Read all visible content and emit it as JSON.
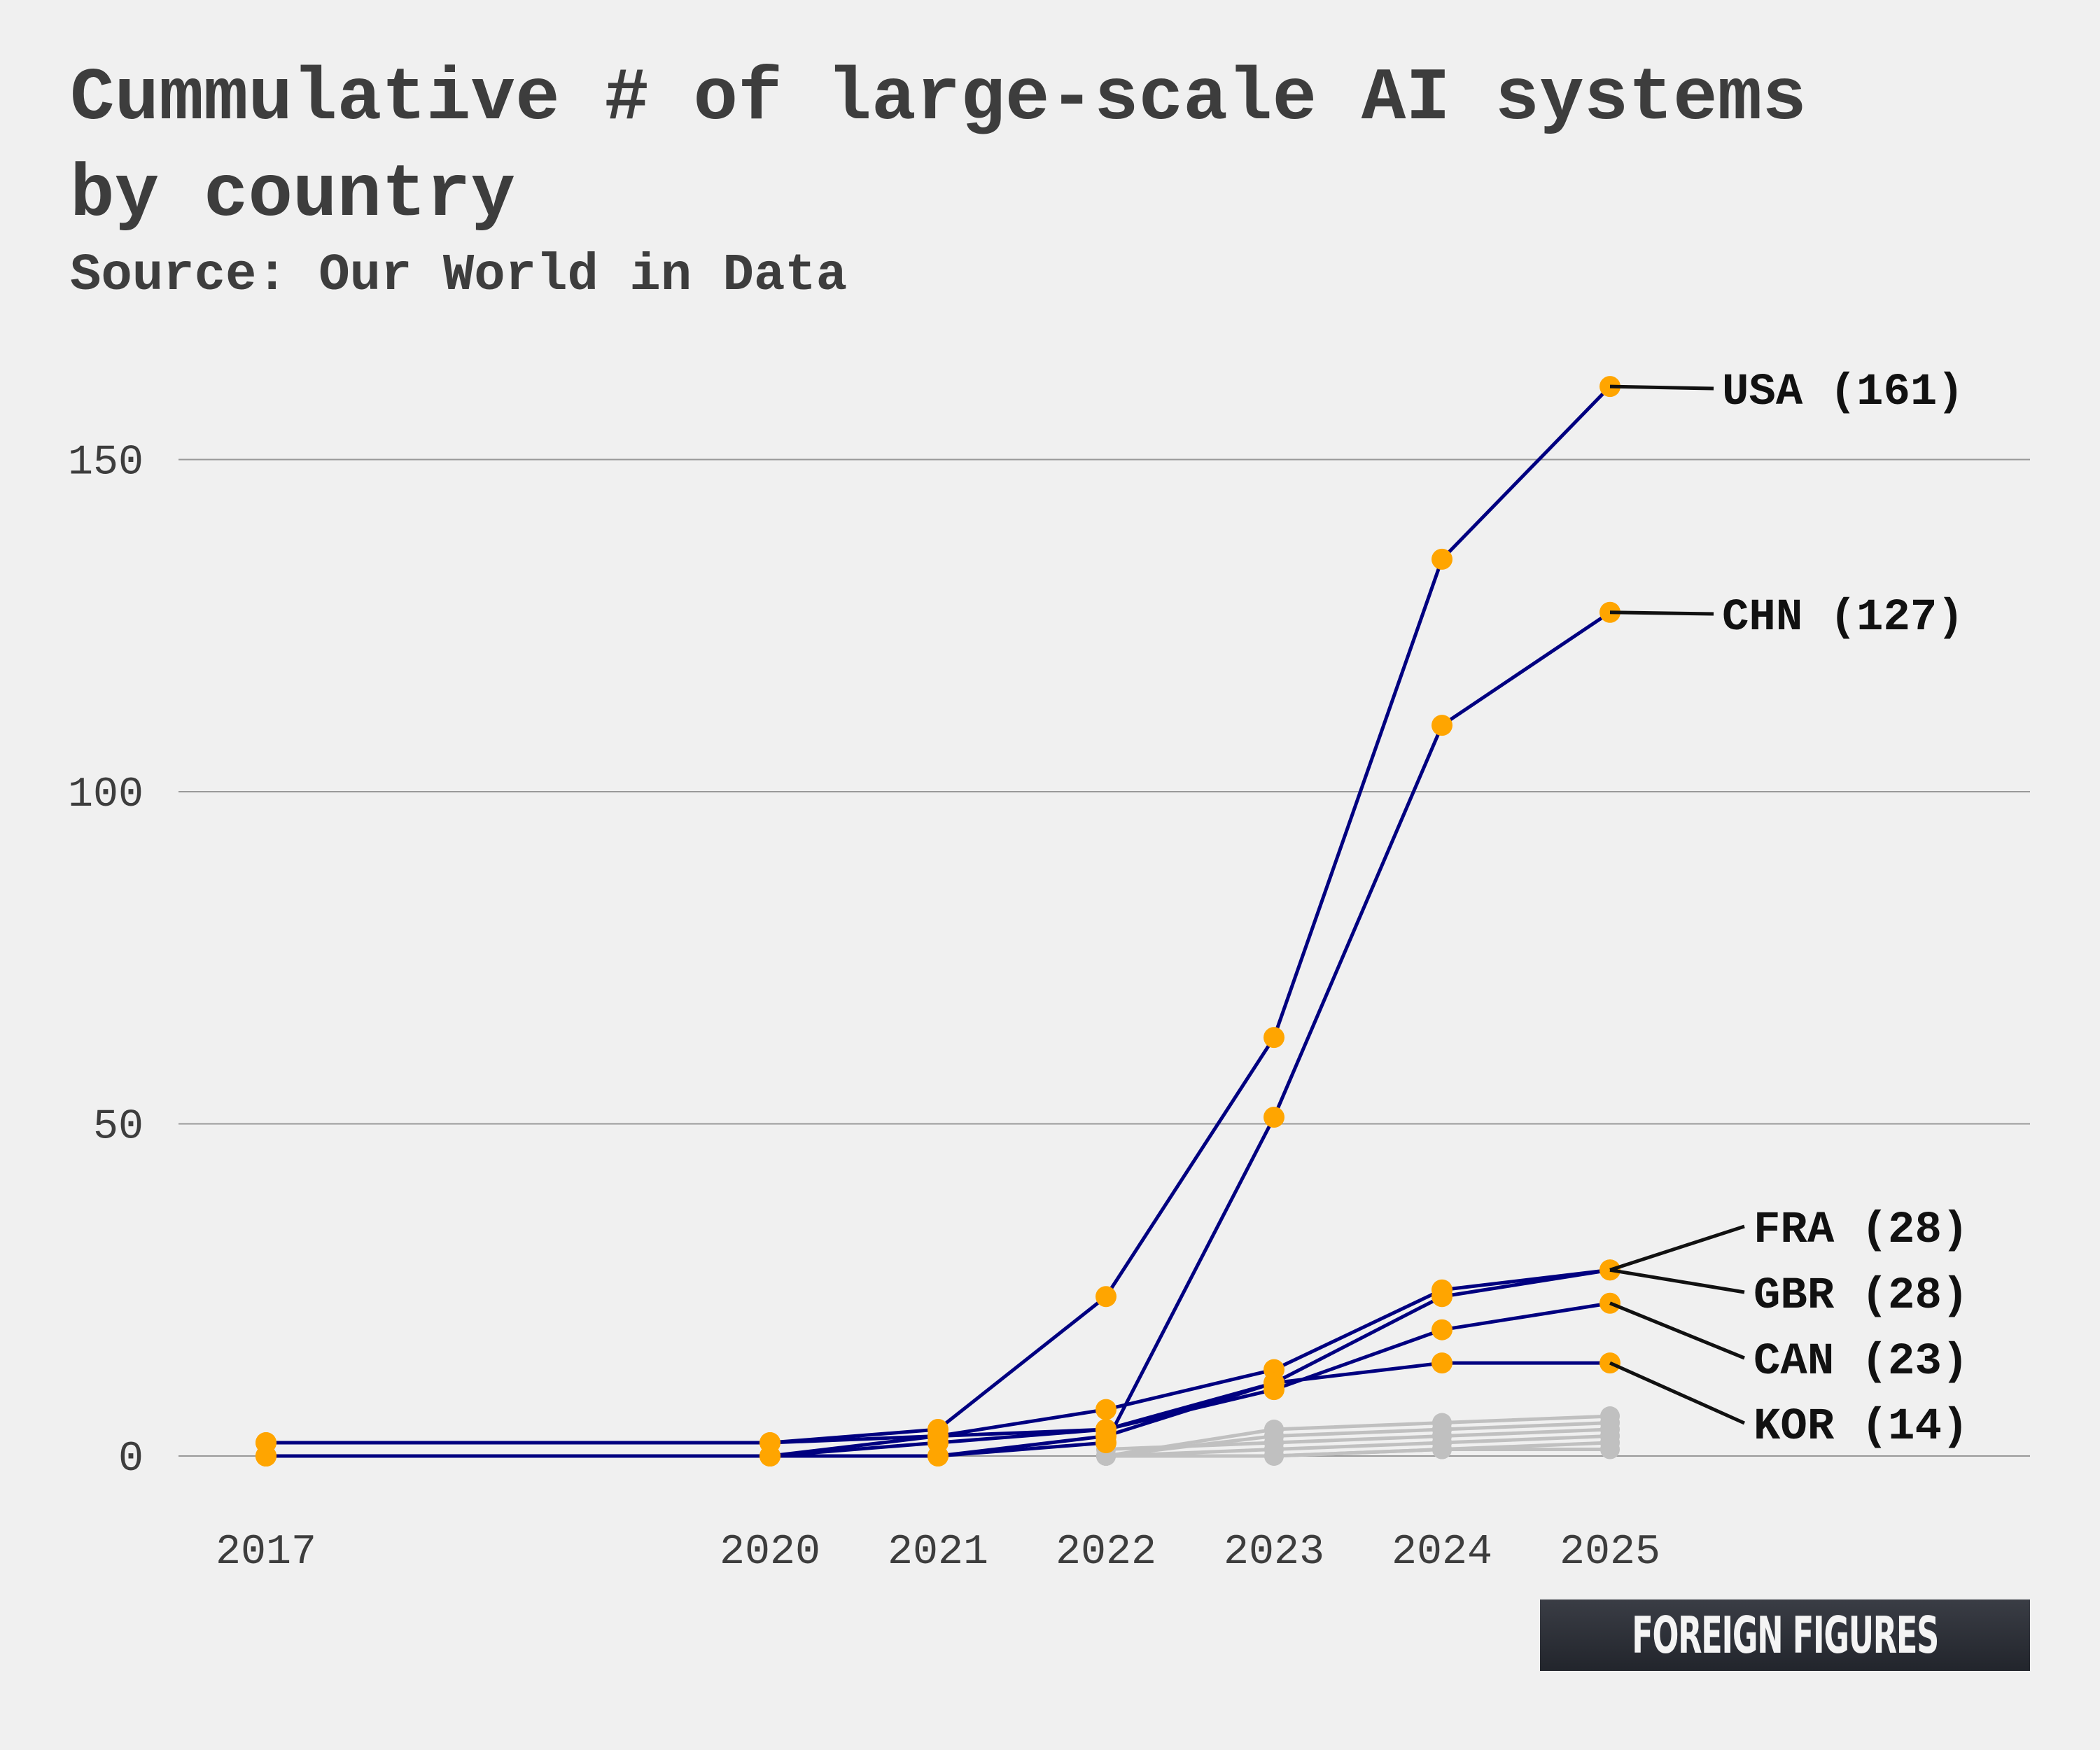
{
  "chart_data": {
    "type": "line",
    "title": "Cummulative # of large-scale AI systems by country",
    "subtitle": "Source: Our World in Data",
    "xlabel": "",
    "ylabel": "",
    "x": [
      2017,
      2020,
      2021,
      2022,
      2023,
      2024,
      2025
    ],
    "x_ticks": [
      "2017",
      "2020",
      "2021",
      "2022",
      "2023",
      "2024",
      "2025"
    ],
    "y_ticks": [
      "0",
      "50",
      "100",
      "150"
    ],
    "ylim": [
      0,
      161
    ],
    "grid": true,
    "colors": {
      "highlight_line": "#000080",
      "highlight_marker": "#ffa500",
      "background_line": "#c0c0c0",
      "gridline": "#999999",
      "leader_line": "#111111"
    },
    "series": [
      {
        "name": "USA (161)",
        "highlight": true,
        "values": [
          2,
          2,
          4,
          24,
          63,
          135,
          161
        ]
      },
      {
        "name": "CHN (127)",
        "highlight": true,
        "values": [
          0,
          0,
          0,
          2,
          51,
          110,
          127
        ]
      },
      {
        "name": "FRA (28)",
        "highlight": true,
        "values": [
          0,
          0,
          3,
          7,
          13,
          25,
          28
        ]
      },
      {
        "name": "GBR (28)",
        "highlight": true,
        "values": [
          0,
          0,
          0,
          3,
          11,
          24,
          28
        ]
      },
      {
        "name": "CAN (23)",
        "highlight": true,
        "values": [
          0,
          0,
          2,
          4,
          10,
          19,
          23
        ]
      },
      {
        "name": "KOR (14)",
        "highlight": true,
        "values": [
          2,
          2,
          3,
          4,
          11,
          14,
          14
        ]
      },
      {
        "highlight": false,
        "values": [
          null,
          null,
          null,
          0,
          4,
          5,
          6
        ]
      },
      {
        "highlight": false,
        "values": [
          null,
          null,
          null,
          0,
          3,
          4,
          5
        ]
      },
      {
        "highlight": false,
        "values": [
          null,
          null,
          null,
          1,
          2,
          3,
          4
        ]
      },
      {
        "highlight": false,
        "values": [
          null,
          null,
          null,
          0,
          1,
          2,
          3
        ]
      },
      {
        "highlight": false,
        "values": [
          null,
          null,
          null,
          0,
          0,
          1,
          2
        ]
      },
      {
        "highlight": false,
        "values": [
          null,
          null,
          null,
          0,
          0,
          1,
          1
        ]
      }
    ]
  },
  "brand": "FOREIGN FIGURES"
}
